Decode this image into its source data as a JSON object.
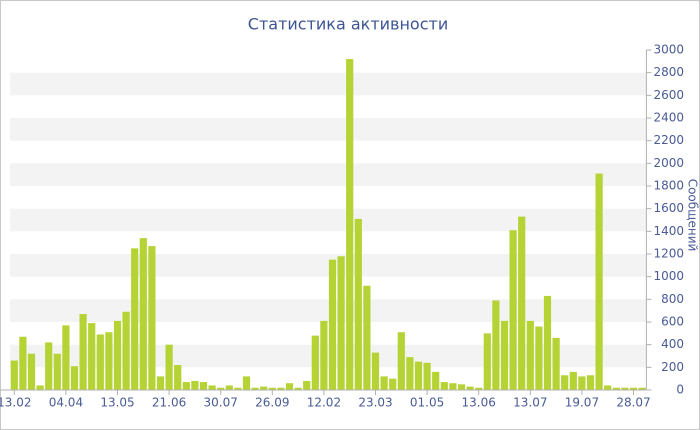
{
  "chart_data": {
    "type": "bar",
    "title": "Статистика активности",
    "y_label": "Сообщений",
    "categories": [
      "13.02",
      null,
      null,
      null,
      null,
      null,
      "04.04",
      null,
      null,
      null,
      null,
      null,
      "13.05",
      null,
      null,
      null,
      null,
      null,
      "21.06",
      null,
      null,
      null,
      null,
      null,
      "30.07",
      null,
      null,
      null,
      null,
      null,
      "26.09",
      null,
      null,
      null,
      null,
      null,
      "12.02",
      null,
      null,
      null,
      null,
      null,
      "23.03",
      null,
      null,
      null,
      null,
      null,
      "01.05",
      null,
      null,
      null,
      null,
      null,
      "13.06",
      null,
      null,
      null,
      null,
      null,
      "13.07",
      null,
      null,
      null,
      null,
      null,
      "19.07",
      null,
      null,
      null,
      null,
      null,
      "28.07",
      null
    ],
    "values": [
      260,
      470,
      320,
      40,
      420,
      320,
      570,
      210,
      670,
      590,
      490,
      510,
      610,
      690,
      1250,
      1340,
      1270,
      120,
      400,
      220,
      70,
      80,
      70,
      40,
      20,
      40,
      20,
      120,
      20,
      30,
      20,
      20,
      60,
      20,
      80,
      480,
      610,
      1150,
      1180,
      2920,
      1510,
      920,
      330,
      120,
      100,
      510,
      290,
      250,
      240,
      160,
      70,
      60,
      50,
      30,
      20,
      500,
      790,
      610,
      1410,
      1530,
      610,
      560,
      830,
      460,
      130,
      160,
      120,
      130,
      1910,
      40,
      20,
      20,
      20,
      20
    ],
    "color": "#b5d334",
    "ylim": [
      0,
      3000
    ],
    "yticks": [
      0,
      200,
      400,
      600,
      800,
      1000,
      1200,
      1400,
      1600,
      1800,
      2000,
      2200,
      2400,
      2600,
      2800,
      3000
    ],
    "grid": true,
    "y_axis_side": "right"
  }
}
